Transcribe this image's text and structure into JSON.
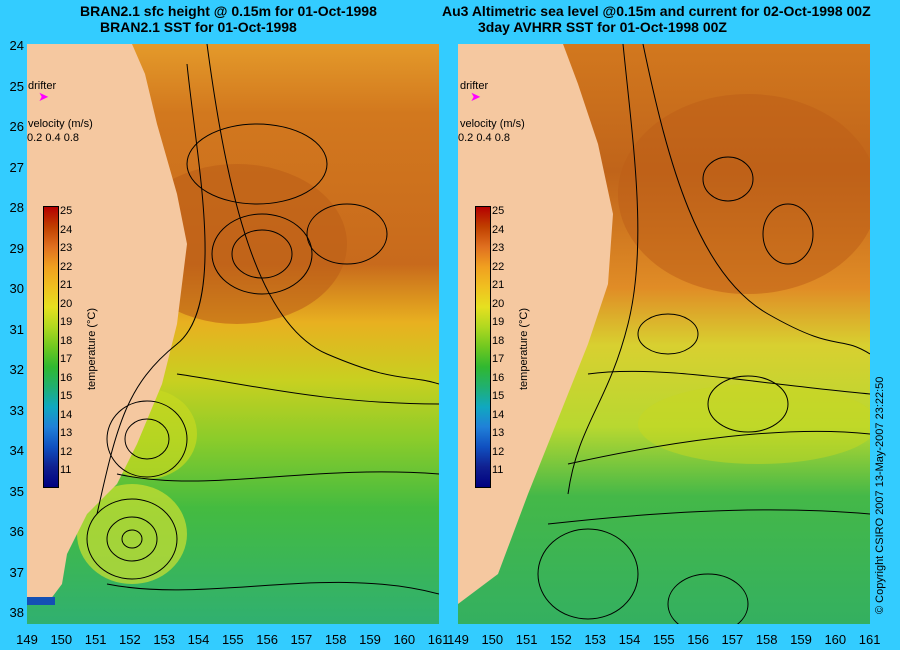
{
  "left_panel": {
    "title_line1": "BRAN2.1 sfc height @ 0.15m for 01-Oct-1998",
    "title_line2": "BRAN2.1 SST for 01-Oct-1998",
    "drifter_label": "drifter",
    "velocity_label": "velocity (m/s)",
    "velocity_scale": "0.2 0.4 0.8",
    "colorbar_title": "temperature (°C)",
    "colorbar_ticks": [
      "25",
      "24",
      "23",
      "22",
      "21",
      "20",
      "19",
      "18",
      "17",
      "16",
      "15",
      "14",
      "13",
      "12",
      "11"
    ]
  },
  "right_panel": {
    "title_line1": "Au3 Altimetric sea level  @0.15m and current for 02-Oct-1998 00Z",
    "title_line2": "3day AVHRR SST for 01-Oct-1998 00Z",
    "drifter_label": "drifter",
    "velocity_label": "velocity (m/s)",
    "velocity_scale": "0.2 0.4 0.8",
    "colorbar_title": "temperature (°C)",
    "colorbar_ticks": [
      "25",
      "24",
      "23",
      "22",
      "21",
      "20",
      "19",
      "18",
      "17",
      "16",
      "15",
      "14",
      "13",
      "12",
      "11"
    ]
  },
  "latitude_labels": [
    "24",
    "25",
    "26",
    "27",
    "28",
    "29",
    "30",
    "31",
    "32",
    "33",
    "34",
    "35",
    "36",
    "37",
    "38"
  ],
  "longitude_labels": [
    "149",
    "150",
    "151",
    "152",
    "153",
    "154",
    "155",
    "156",
    "157",
    "158",
    "159",
    "160",
    "161"
  ],
  "copyright": "© Copyright CSIRO 2007   13-May-2007 23:22:50",
  "colors": {
    "background": "#33ccff",
    "land": "#f5c8a0",
    "warm": "#c0641e",
    "mid": "#e6a226",
    "cool": "#9acd32",
    "cold": "#22b14c",
    "drifter": "#ff00ff"
  }
}
